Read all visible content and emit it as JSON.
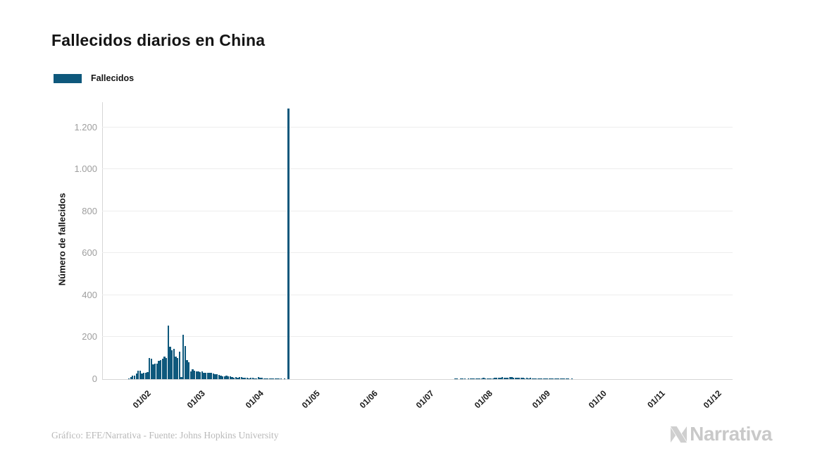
{
  "header": {
    "title": "Fallecidos diarios en China"
  },
  "legend": {
    "items": [
      {
        "label": "Fallecidos",
        "color": "#0e587c"
      }
    ]
  },
  "chart_data": {
    "type": "bar",
    "title": "Fallecidos diarios en China",
    "series_name": "Fallecidos",
    "xlabel": "",
    "ylabel": "Número de fallecidos",
    "x_tick_labels": [
      "01/02",
      "01/03",
      "01/04",
      "01/05",
      "01/06",
      "01/07",
      "01/08",
      "01/09",
      "01/10",
      "01/11",
      "01/12"
    ],
    "x_tick_day_indices": [
      9,
      38,
      69,
      99,
      130,
      160,
      191,
      222,
      252,
      283,
      313
    ],
    "y_tick_labels": [
      "0",
      "200",
      "400",
      "600",
      "800",
      "1.000",
      "1.200"
    ],
    "y_tick_values": [
      0,
      200,
      400,
      600,
      800,
      1000,
      1200
    ],
    "ylim": [
      0,
      1320
    ],
    "grid": "horizontal-light",
    "legend_position": "top-left",
    "bar_color": "#0e587c",
    "start_date": "2020-01-23",
    "frequency": "daily",
    "values": [
      2,
      8,
      16,
      15,
      25,
      40,
      39,
      25,
      28,
      30,
      32,
      98,
      95,
      70,
      72,
      73,
      86,
      90,
      97,
      105,
      100,
      254,
      152,
      135,
      142,
      107,
      99,
      129,
      8,
      210,
      157,
      88,
      79,
      37,
      44,
      40,
      34,
      37,
      32,
      37,
      30,
      28,
      30,
      29,
      28,
      26,
      23,
      21,
      18,
      15,
      13,
      12,
      14,
      13,
      11,
      8,
      6,
      7,
      6,
      9,
      7,
      4,
      5,
      5,
      3,
      5,
      5,
      2,
      1,
      7,
      6,
      4,
      3,
      2,
      1,
      2,
      2,
      1,
      2,
      1,
      2,
      1,
      0,
      2,
      0,
      1290,
      0,
      0,
      0,
      0,
      0,
      0,
      0,
      0,
      0,
      0,
      0,
      0,
      0,
      0,
      0,
      0,
      0,
      0,
      0,
      0,
      0,
      0,
      0,
      0,
      0,
      0,
      0,
      0,
      0,
      0,
      0,
      0,
      0,
      0,
      0,
      0,
      0,
      0,
      0,
      0,
      0,
      0,
      0,
      0,
      0,
      0,
      0,
      0,
      0,
      0,
      0,
      0,
      0,
      0,
      0,
      0,
      0,
      0,
      0,
      0,
      0,
      0,
      0,
      0,
      0,
      0,
      0,
      0,
      0,
      0,
      0,
      0,
      0,
      0,
      0,
      0,
      0,
      0,
      0,
      0,
      0,
      0,
      0,
      0,
      0,
      0,
      0,
      0,
      1,
      1,
      0,
      1,
      1,
      1,
      0,
      2,
      2,
      2,
      1,
      2,
      1,
      2,
      3,
      4,
      3,
      3,
      2,
      3,
      3,
      4,
      5,
      5,
      6,
      7,
      5,
      5,
      6,
      7,
      8,
      5,
      5,
      4,
      6,
      6,
      5,
      3,
      4,
      3,
      4,
      2,
      3,
      2,
      2,
      3,
      2,
      2,
      2,
      1,
      2,
      1,
      2,
      1,
      1,
      1,
      1,
      1,
      1,
      1,
      1,
      0,
      1,
      0,
      0,
      0,
      0,
      0,
      0,
      0,
      0,
      0,
      0,
      0,
      0,
      0,
      0,
      0,
      0,
      0,
      0,
      0,
      0,
      0,
      0,
      0,
      0,
      0,
      0,
      0,
      0,
      0,
      0,
      0,
      0,
      0,
      0,
      0,
      0,
      0,
      0,
      0,
      0,
      0,
      0,
      0,
      0,
      0,
      0,
      0,
      0,
      0,
      0,
      0,
      0,
      0,
      0,
      0,
      0,
      0,
      0,
      0,
      0,
      0,
      0,
      0,
      0,
      0,
      0,
      0,
      0,
      0,
      0,
      0,
      0,
      0,
      0,
      0,
      0,
      0
    ],
    "notable_points": [
      {
        "date": "2020-02-13",
        "value": 254
      },
      {
        "date": "2020-04-17",
        "value": 1290
      }
    ]
  },
  "footer": {
    "credit": "Gráfico: EFE/Narrativa - Fuente: Johns Hopkins University",
    "brand": "Narrativa"
  }
}
